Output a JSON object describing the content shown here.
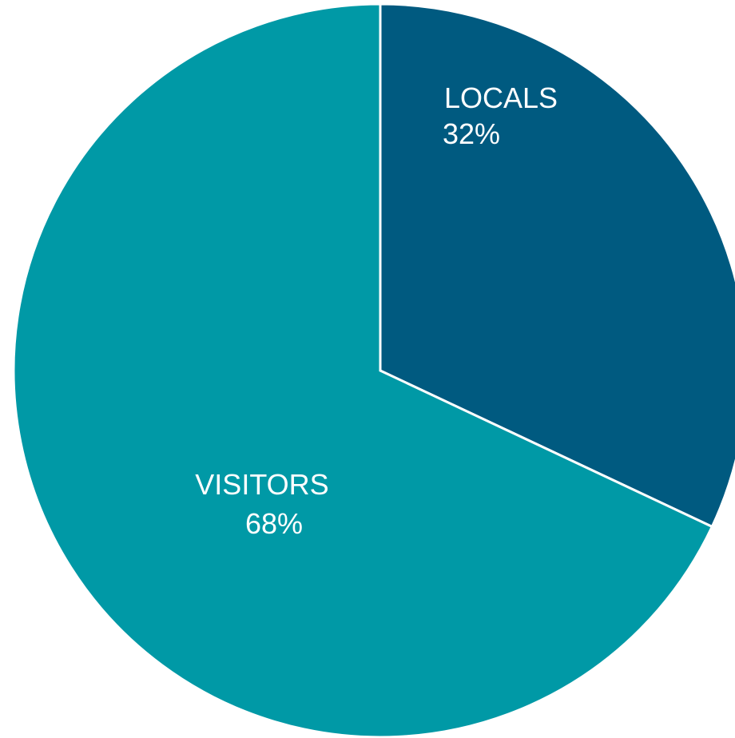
{
  "chart_data": {
    "type": "pie",
    "title": "",
    "start_angle_deg": 0,
    "direction": "clockwise",
    "slices": [
      {
        "label": "LOCALS",
        "value": 32,
        "value_label": "32%",
        "color": "#005a80"
      },
      {
        "label": "VISITORS",
        "value": 68,
        "value_label": "68%",
        "color": "#0099a6"
      }
    ]
  }
}
